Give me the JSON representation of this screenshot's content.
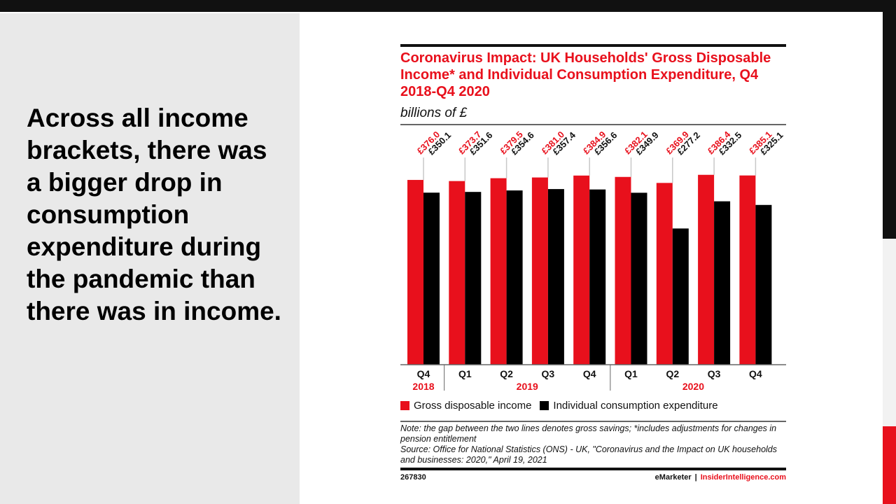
{
  "slide": {
    "headline": "Across all income brackets, there was a bigger drop in consumption expenditure during the pandemic than there was in income."
  },
  "colors": {
    "accent_red": "#e8101c",
    "dark": "#111111",
    "panel_gray": "#e9e9e9"
  },
  "chart_data": {
    "type": "bar",
    "title": "Coronavirus Impact: UK Households' Gross Disposable Income* and Individual Consumption Expenditure, Q4 2018-Q4 2020",
    "subtitle": "billions of £",
    "xlabel": "",
    "ylabel": "billions of £",
    "ylim": [
      0,
      400
    ],
    "grid": false,
    "categories": [
      "Q4",
      "Q1",
      "Q2",
      "Q3",
      "Q4",
      "Q1",
      "Q2",
      "Q3",
      "Q4"
    ],
    "year_groups": [
      {
        "label": "2018",
        "span": 1
      },
      {
        "label": "2019",
        "span": 4
      },
      {
        "label": "2020",
        "span": 4
      }
    ],
    "series": [
      {
        "name": "Gross disposable income",
        "color": "#e8101c",
        "values": [
          376.0,
          373.7,
          379.5,
          381.0,
          384.9,
          382.1,
          369.9,
          386.4,
          385.1
        ],
        "labels": [
          "£376.0",
          "£373.7",
          "£379.5",
          "£381.0",
          "£384.9",
          "£382.1",
          "£369.9",
          "£386.4",
          "£385.1"
        ]
      },
      {
        "name": "Individual consumption expenditure",
        "color": "#000000",
        "values": [
          350.1,
          351.6,
          354.6,
          357.4,
          356.6,
          349.9,
          277.2,
          332.5,
          325.1
        ],
        "labels": [
          "£350.1",
          "£351.6",
          "£354.6",
          "£357.4",
          "£356.6",
          "£349.9",
          "£277.2",
          "£332.5",
          "£325.1"
        ]
      }
    ],
    "legend": "bottom",
    "note": "Note: the gap between the two lines denotes gross savings; *includes adjustments for changes in pension entitlement",
    "source": "Source: Office for National Statistics (ONS) - UK, \"Coronavirus and the Impact on UK households and businesses: 2020,\" April 19, 2021",
    "chart_id": "267830",
    "brand_left": "eMarketer",
    "brand_sep": "|",
    "brand_right": "InsiderIntelligence.com"
  }
}
